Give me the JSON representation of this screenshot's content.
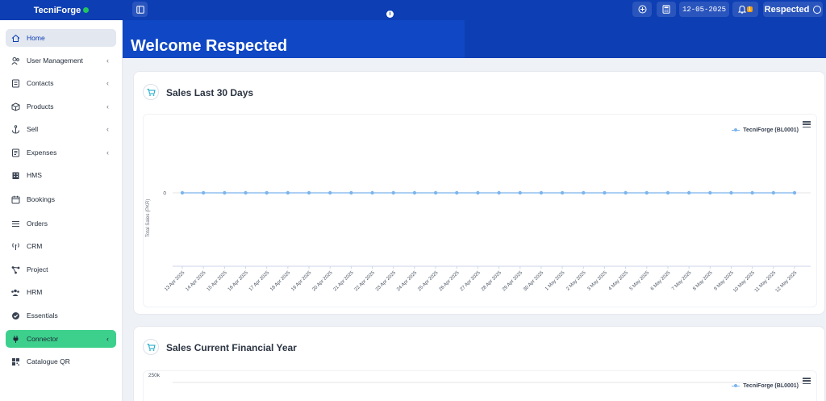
{
  "topbar": {
    "brand": "TecniForge",
    "date": "12-05-2025",
    "notifications_count": "1",
    "user_name": "Respected"
  },
  "sidebar": {
    "items": [
      {
        "label": "Home",
        "icon": "home-icon",
        "has_submenu": false,
        "active": true
      },
      {
        "label": "User Management",
        "icon": "users-icon",
        "has_submenu": true
      },
      {
        "label": "Contacts",
        "icon": "contacts-icon",
        "has_submenu": true
      },
      {
        "label": "Products",
        "icon": "box-icon",
        "has_submenu": true
      },
      {
        "label": "Sell",
        "icon": "anchor-icon",
        "has_submenu": true
      },
      {
        "label": "Expenses",
        "icon": "receipt-icon",
        "has_submenu": true
      },
      {
        "label": "HMS",
        "icon": "building-icon",
        "has_submenu": false
      },
      {
        "label": "Bookings",
        "icon": "calendar-icon",
        "has_submenu": false
      },
      {
        "label": "Orders",
        "icon": "list-icon",
        "has_submenu": false
      },
      {
        "label": "CRM",
        "icon": "broadcast-icon",
        "has_submenu": false
      },
      {
        "label": "Project",
        "icon": "network-icon",
        "has_submenu": false
      },
      {
        "label": "HRM",
        "icon": "people-icon",
        "has_submenu": false
      },
      {
        "label": "Essentials",
        "icon": "check-circle-icon",
        "has_submenu": false
      },
      {
        "label": "Connector",
        "icon": "plug-icon",
        "has_submenu": true,
        "highlight": "#3dd08d"
      },
      {
        "label": "Catalogue QR",
        "icon": "qr-icon",
        "has_submenu": false
      }
    ]
  },
  "banner": {
    "welcome": "Welcome Respected"
  },
  "cards": {
    "sales_30": {
      "title": "Sales Last 30 Days"
    },
    "sales_fy": {
      "title": "Sales Current Financial Year"
    }
  },
  "chart_data": [
    {
      "type": "line",
      "title": "Sales Last 30 Days",
      "ylabel": "Total Sales (PKR)",
      "xlabel": "",
      "yticks": [
        "0"
      ],
      "x": [
        "13 Apr 2025",
        "14 Apr 2025",
        "15 Apr 2025",
        "16 Apr 2025",
        "17 Apr 2025",
        "18 Apr 2025",
        "19 Apr 2025",
        "20 Apr 2025",
        "21 Apr 2025",
        "22 Apr 2025",
        "23 Apr 2025",
        "24 Apr 2025",
        "25 Apr 2025",
        "26 Apr 2025",
        "27 Apr 2025",
        "28 Apr 2025",
        "29 Apr 2025",
        "30 Apr 2025",
        "1 May 2025",
        "2 May 2025",
        "3 May 2025",
        "4 May 2025",
        "5 May 2025",
        "6 May 2025",
        "7 May 2025",
        "8 May 2025",
        "9 May 2025",
        "10 May 2025",
        "11 May 2025",
        "12 May 2025"
      ],
      "series": [
        {
          "name": "TecniForge (BL0001)",
          "color": "#7cb5ec",
          "values": [
            0,
            0,
            0,
            0,
            0,
            0,
            0,
            0,
            0,
            0,
            0,
            0,
            0,
            0,
            0,
            0,
            0,
            0,
            0,
            0,
            0,
            0,
            0,
            0,
            0,
            0,
            0,
            0,
            0,
            0
          ]
        }
      ],
      "legend": "top-right",
      "grid": true
    },
    {
      "type": "line",
      "title": "Sales Current Financial Year",
      "yticks": [
        "250k"
      ],
      "series": [
        {
          "name": "TecniForge (BL0001)",
          "color": "#7cb5ec"
        }
      ],
      "legend": "top-right",
      "grid": true
    }
  ]
}
